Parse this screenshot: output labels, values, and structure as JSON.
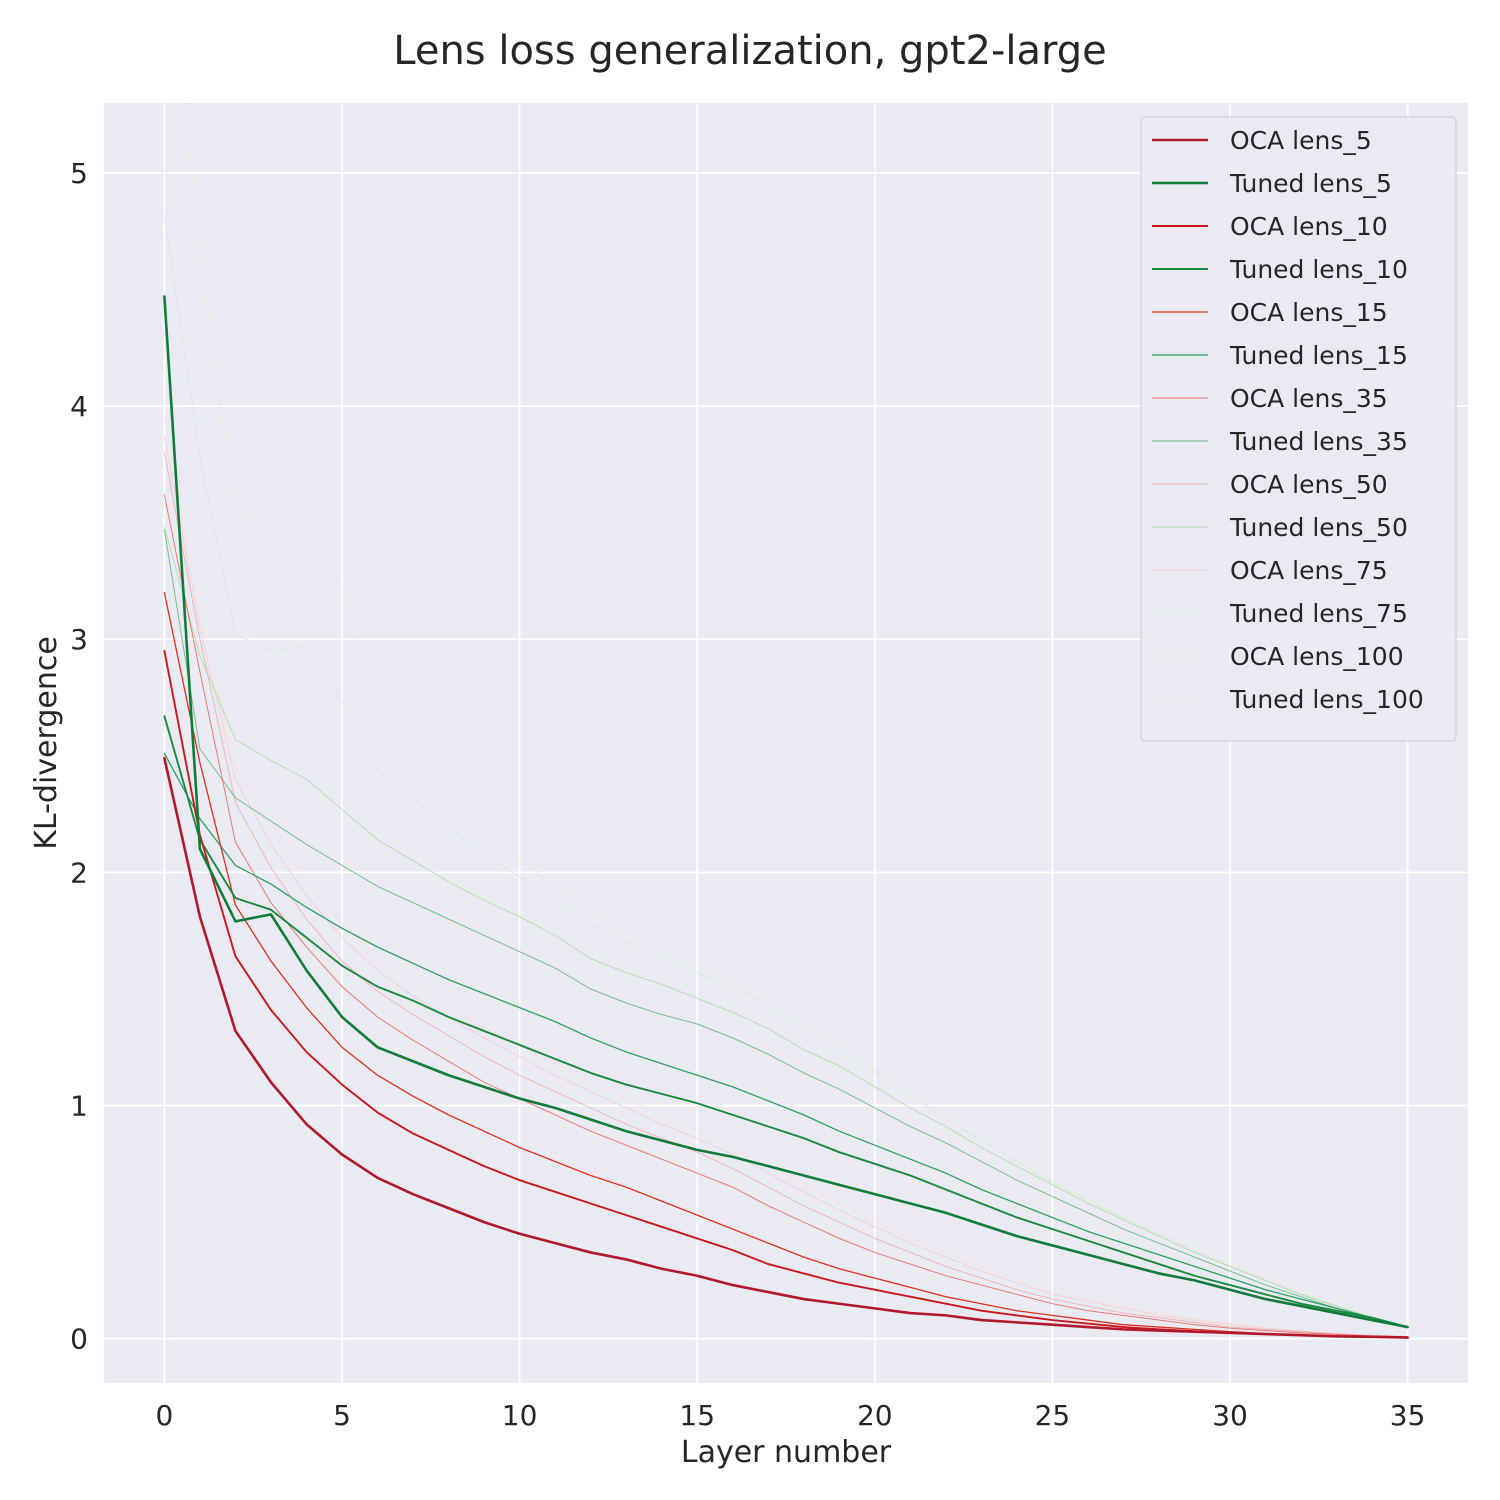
{
  "chart_data": {
    "type": "line",
    "title": "Lens loss generalization, gpt2-large",
    "xlabel": "Layer number",
    "ylabel": "KL-divergence",
    "xlim": [
      -1.7,
      36.7
    ],
    "ylim": [
      -0.19,
      5.3
    ],
    "xticks": [
      0,
      5,
      10,
      15,
      20,
      25,
      30,
      35
    ],
    "yticks": [
      0,
      1,
      2,
      3,
      4,
      5
    ],
    "grid": true,
    "legend_position": "top-right",
    "x": [
      0,
      1,
      2,
      3,
      4,
      5,
      6,
      7,
      8,
      9,
      10,
      11,
      12,
      13,
      14,
      15,
      16,
      17,
      18,
      19,
      20,
      21,
      22,
      23,
      24,
      25,
      26,
      27,
      28,
      29,
      30,
      31,
      32,
      33,
      34,
      35
    ],
    "series": [
      {
        "name": "OCA lens_5",
        "color": "#b2182b",
        "opacity": 1.0,
        "width": 2.6,
        "values": [
          2.49,
          1.81,
          1.32,
          1.1,
          0.92,
          0.79,
          0.69,
          0.62,
          0.56,
          0.5,
          0.45,
          0.41,
          0.37,
          0.34,
          0.3,
          0.27,
          0.23,
          0.2,
          0.17,
          0.15,
          0.13,
          0.11,
          0.1,
          0.08,
          0.07,
          0.06,
          0.05,
          0.04,
          0.035,
          0.03,
          0.025,
          0.02,
          0.015,
          0.01,
          0.008,
          0.005
        ]
      },
      {
        "name": "Tuned lens_5",
        "color": "#137b3a",
        "opacity": 1.0,
        "width": 2.6,
        "values": [
          4.47,
          2.1,
          1.79,
          1.82,
          1.58,
          1.38,
          1.25,
          1.19,
          1.13,
          1.08,
          1.03,
          0.99,
          0.94,
          0.89,
          0.85,
          0.81,
          0.78,
          0.74,
          0.7,
          0.66,
          0.62,
          0.58,
          0.54,
          0.49,
          0.44,
          0.4,
          0.36,
          0.32,
          0.28,
          0.25,
          0.21,
          0.17,
          0.14,
          0.11,
          0.08,
          0.05
        ]
      },
      {
        "name": "OCA lens_10",
        "color": "#cb181d",
        "opacity": 1.0,
        "width": 1.9,
        "values": [
          2.95,
          2.16,
          1.64,
          1.41,
          1.23,
          1.09,
          0.97,
          0.88,
          0.81,
          0.74,
          0.68,
          0.63,
          0.58,
          0.53,
          0.48,
          0.43,
          0.38,
          0.32,
          0.28,
          0.24,
          0.21,
          0.18,
          0.15,
          0.12,
          0.1,
          0.08,
          0.065,
          0.05,
          0.04,
          0.032,
          0.025,
          0.02,
          0.015,
          0.01,
          0.008,
          0.006
        ]
      },
      {
        "name": "Tuned lens_10",
        "color": "#1a8a3f",
        "opacity": 1.0,
        "width": 1.9,
        "values": [
          2.67,
          2.14,
          1.89,
          1.84,
          1.72,
          1.6,
          1.51,
          1.45,
          1.38,
          1.32,
          1.26,
          1.2,
          1.14,
          1.09,
          1.05,
          1.01,
          0.96,
          0.91,
          0.86,
          0.8,
          0.75,
          0.7,
          0.64,
          0.58,
          0.52,
          0.47,
          0.42,
          0.37,
          0.32,
          0.27,
          0.23,
          0.19,
          0.15,
          0.12,
          0.09,
          0.05
        ]
      },
      {
        "name": "OCA lens_15",
        "color": "#e0301e",
        "opacity": 1.0,
        "width": 1.3,
        "values": [
          3.2,
          2.47,
          1.86,
          1.62,
          1.42,
          1.25,
          1.13,
          1.04,
          0.96,
          0.89,
          0.82,
          0.76,
          0.7,
          0.65,
          0.59,
          0.53,
          0.47,
          0.41,
          0.35,
          0.3,
          0.26,
          0.22,
          0.18,
          0.15,
          0.12,
          0.1,
          0.08,
          0.06,
          0.05,
          0.04,
          0.03,
          0.022,
          0.016,
          0.011,
          0.008,
          0.006
        ]
      },
      {
        "name": "Tuned lens_15",
        "color": "#2ca25f",
        "opacity": 1.0,
        "width": 1.3,
        "values": [
          2.51,
          2.23,
          2.03,
          1.95,
          1.85,
          1.76,
          1.68,
          1.61,
          1.54,
          1.48,
          1.42,
          1.36,
          1.29,
          1.23,
          1.18,
          1.13,
          1.08,
          1.02,
          0.96,
          0.89,
          0.83,
          0.77,
          0.71,
          0.64,
          0.58,
          0.52,
          0.46,
          0.41,
          0.36,
          0.31,
          0.26,
          0.21,
          0.17,
          0.13,
          0.09,
          0.05
        ]
      },
      {
        "name": "OCA lens_35",
        "color": "#ef3b2c",
        "opacity": 0.7,
        "width": 0.9,
        "values": [
          3.62,
          2.86,
          2.13,
          1.87,
          1.68,
          1.51,
          1.38,
          1.28,
          1.19,
          1.1,
          1.03,
          0.96,
          0.89,
          0.83,
          0.77,
          0.71,
          0.65,
          0.57,
          0.5,
          0.43,
          0.37,
          0.32,
          0.27,
          0.23,
          0.19,
          0.15,
          0.12,
          0.1,
          0.08,
          0.06,
          0.045,
          0.035,
          0.025,
          0.018,
          0.012,
          0.008
        ]
      },
      {
        "name": "Tuned lens_35",
        "color": "#41ab5d",
        "opacity": 0.75,
        "width": 0.9,
        "values": [
          3.47,
          2.53,
          2.32,
          2.22,
          2.12,
          2.03,
          1.94,
          1.87,
          1.8,
          1.73,
          1.66,
          1.59,
          1.5,
          1.44,
          1.39,
          1.35,
          1.29,
          1.22,
          1.14,
          1.07,
          0.99,
          0.91,
          0.84,
          0.76,
          0.68,
          0.61,
          0.54,
          0.47,
          0.41,
          0.35,
          0.29,
          0.23,
          0.18,
          0.13,
          0.09,
          0.05
        ]
      },
      {
        "name": "OCA lens_50",
        "color": "#f4a1a1",
        "opacity": 0.8,
        "width": 0.9,
        "values": [
          3.8,
          3.0,
          2.3,
          2.02,
          1.8,
          1.62,
          1.49,
          1.39,
          1.3,
          1.21,
          1.13,
          1.06,
          0.99,
          0.92,
          0.86,
          0.8,
          0.73,
          0.65,
          0.57,
          0.5,
          0.43,
          0.37,
          0.31,
          0.26,
          0.21,
          0.17,
          0.14,
          0.11,
          0.09,
          0.07,
          0.05,
          0.04,
          0.03,
          0.02,
          0.013,
          0.008
        ]
      },
      {
        "name": "Tuned lens_50",
        "color": "#a1d99b",
        "opacity": 0.8,
        "width": 0.9,
        "values": [
          3.48,
          2.93,
          2.57,
          2.48,
          2.4,
          2.27,
          2.14,
          2.05,
          1.96,
          1.88,
          1.81,
          1.73,
          1.63,
          1.57,
          1.52,
          1.46,
          1.4,
          1.33,
          1.24,
          1.17,
          1.08,
          0.99,
          0.91,
          0.82,
          0.74,
          0.66,
          0.58,
          0.51,
          0.44,
          0.37,
          0.31,
          0.25,
          0.19,
          0.14,
          0.09,
          0.05
        ]
      },
      {
        "name": "OCA lens_75",
        "color": "#f6c8c8",
        "opacity": 0.8,
        "width": 0.9,
        "values": [
          3.87,
          3.05,
          2.4,
          2.12,
          1.9,
          1.72,
          1.58,
          1.47,
          1.38,
          1.29,
          1.21,
          1.13,
          1.06,
          0.99,
          0.92,
          0.86,
          0.79,
          0.71,
          0.63,
          0.55,
          0.48,
          0.41,
          0.35,
          0.29,
          0.24,
          0.19,
          0.16,
          0.13,
          0.1,
          0.08,
          0.06,
          0.045,
          0.032,
          0.022,
          0.014,
          0.009
        ]
      },
      {
        "name": "Tuned lens_75",
        "color": "#d9e6d9",
        "opacity": 0.85,
        "width": 0.9,
        "values": [
          4.82,
          3.78,
          3.02,
          2.95,
          2.97,
          2.73,
          2.44,
          2.32,
          2.19,
          2.08,
          1.98,
          1.88,
          1.78,
          1.7,
          1.64,
          1.57,
          1.51,
          1.43,
          1.33,
          1.24,
          1.14,
          1.04,
          0.94,
          0.85,
          0.76,
          0.67,
          0.59,
          0.52,
          0.45,
          0.38,
          0.31,
          0.25,
          0.19,
          0.14,
          0.09,
          0.05
        ]
      },
      {
        "name": "OCA lens_100",
        "color": "#f9dede",
        "opacity": 0.85,
        "width": 0.9,
        "values": [
          3.95,
          3.12,
          2.46,
          2.18,
          1.96,
          1.78,
          1.64,
          1.53,
          1.43,
          1.34,
          1.26,
          1.18,
          1.1,
          1.03,
          0.96,
          0.89,
          0.82,
          0.74,
          0.66,
          0.58,
          0.5,
          0.43,
          0.37,
          0.31,
          0.25,
          0.2,
          0.17,
          0.14,
          0.11,
          0.085,
          0.065,
          0.048,
          0.034,
          0.023,
          0.015,
          0.01
        ]
      },
      {
        "name": "Tuned lens_100",
        "color": "#e6ebe0",
        "opacity": 0.9,
        "width": 0.9,
        "values": [
          6.2,
          4.65,
          3.53,
          3.49,
          3.64,
          3.2,
          2.73,
          2.52,
          2.28,
          2.16,
          2.05,
          1.95,
          1.84,
          1.74,
          1.67,
          1.6,
          1.52,
          1.44,
          1.35,
          1.26,
          1.15,
          1.05,
          0.95,
          0.85,
          0.76,
          0.68,
          0.6,
          0.52,
          0.45,
          0.38,
          0.32,
          0.26,
          0.2,
          0.14,
          0.09,
          0.05
        ]
      }
    ]
  }
}
